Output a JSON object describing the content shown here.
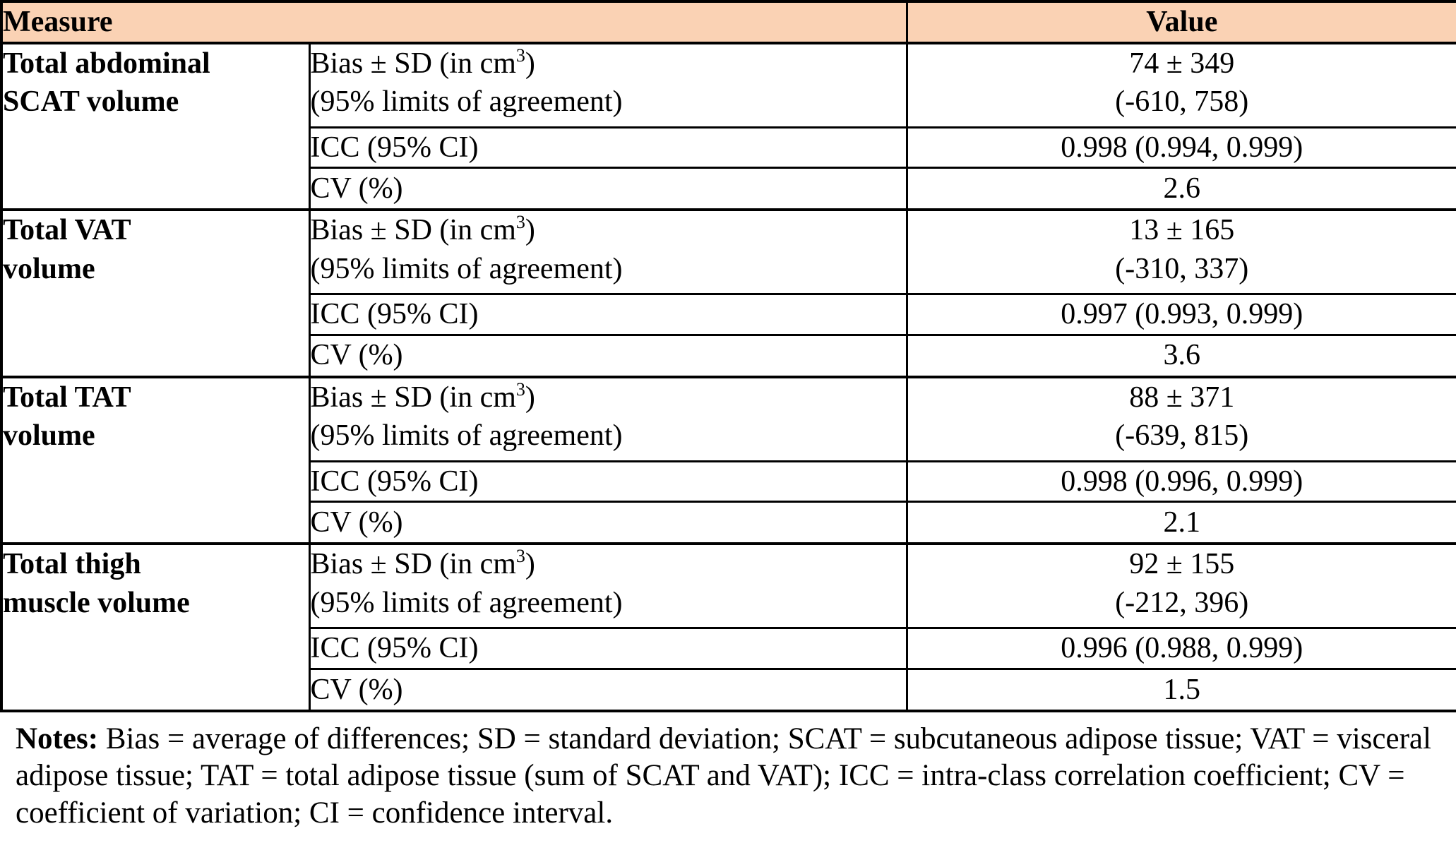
{
  "table": {
    "colors": {
      "header_bg": "#FAD2B4",
      "border": "#000000",
      "background": "#FFFFFF"
    },
    "header": {
      "measure": "Measure",
      "value": "Value"
    },
    "sections": [
      {
        "measure_line1": "Total abdominal",
        "measure_line2": "SCAT volume",
        "bias": {
          "label_pre": "Bias ± SD (in cm",
          "label_sup": "3",
          "label_post": ")",
          "label_line2": "(95% limits of agreement)",
          "value_line1": "74 ± 349",
          "value_line2": "(-610, 758)"
        },
        "icc": {
          "label": "ICC (95% CI)",
          "value": "0.998 (0.994, 0.999)"
        },
        "cv": {
          "label": "CV (%)",
          "value": "2.6"
        }
      },
      {
        "measure_line1": "Total VAT",
        "measure_line2": "volume",
        "bias": {
          "label_pre": "Bias ± SD (in cm",
          "label_sup": "3",
          "label_post": ")",
          "label_line2": "(95% limits of agreement)",
          "value_line1": "13 ± 165",
          "value_line2": "(-310, 337)"
        },
        "icc": {
          "label": "ICC (95% CI)",
          "value": "0.997 (0.993, 0.999)"
        },
        "cv": {
          "label": "CV (%)",
          "value": "3.6"
        }
      },
      {
        "measure_line1": "Total TAT",
        "measure_line2": "volume",
        "bias": {
          "label_pre": "Bias ± SD (in cm",
          "label_sup": "3",
          "label_post": ")",
          "label_line2": "(95% limits of agreement)",
          "value_line1": "88 ± 371",
          "value_line2": "(-639, 815)"
        },
        "icc": {
          "label": "ICC (95% CI)",
          "value": "0.998 (0.996, 0.999)"
        },
        "cv": {
          "label": "CV (%)",
          "value": "2.1"
        }
      },
      {
        "measure_line1": "Total thigh",
        "measure_line2": "muscle volume",
        "bias": {
          "label_pre": "Bias ± SD (in cm",
          "label_sup": "3",
          "label_post": ")",
          "label_line2": "(95% limits of agreement)",
          "value_line1": "92 ± 155",
          "value_line2": "(-212, 396)"
        },
        "icc": {
          "label": "ICC (95% CI)",
          "value": "0.996 (0.988, 0.999)"
        },
        "cv": {
          "label": "CV (%)",
          "value": "1.5"
        }
      }
    ],
    "notes": {
      "label": "Notes:",
      "text": " Bias = average of differences; SD = standard deviation; SCAT = subcutaneous adipose tissue; VAT = visceral adipose tissue; TAT = total adipose tissue (sum of SCAT and VAT); ICC = intra-class correlation coefficient; CV = coefficient of variation; CI = confidence interval."
    }
  }
}
